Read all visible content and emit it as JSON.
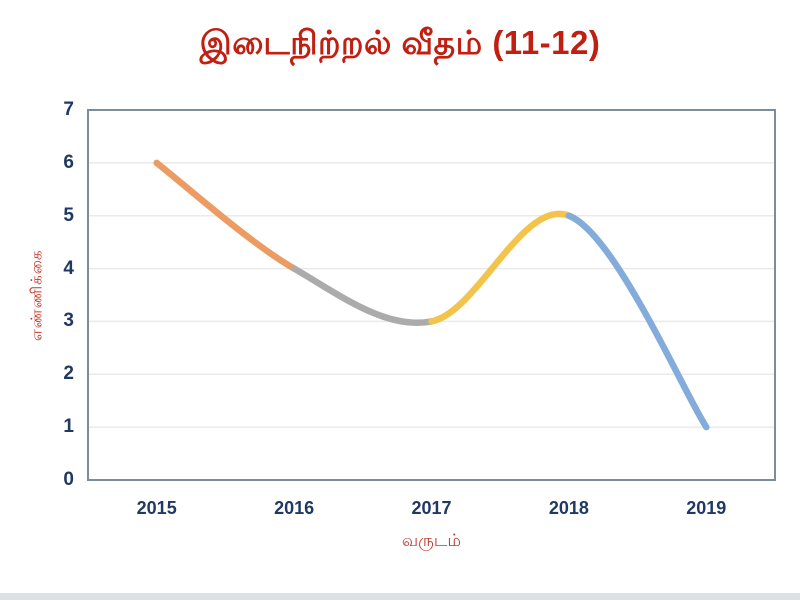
{
  "chart_data": {
    "type": "line",
    "smooth": true,
    "title": "இடைநிற்றல் வீதம் (11-12)",
    "xlabel": "வருடம்",
    "ylabel": "எண்ணிக்கை",
    "categories": [
      "2015",
      "2016",
      "2017",
      "2018",
      "2019"
    ],
    "values": [
      6,
      4,
      3,
      5,
      1
    ],
    "ylim": [
      0,
      7
    ],
    "yticks": [
      0,
      1,
      2,
      3,
      4,
      5,
      6,
      7
    ],
    "grid": true,
    "legend": "none",
    "segment_colors": [
      "#EC9B62",
      "#ABABAB",
      "#F3C44B",
      "#84ACDA"
    ]
  },
  "styles": {
    "title_color": "#C01F12",
    "axis_tick_color": "#1F3864",
    "axis_title_color": "#C0392B",
    "grid_color": "#EAEAEA",
    "frame_color": "#7E8C9A",
    "bottom_strip_color": "#DDE0E4",
    "background_color": "#FFFFFF"
  }
}
